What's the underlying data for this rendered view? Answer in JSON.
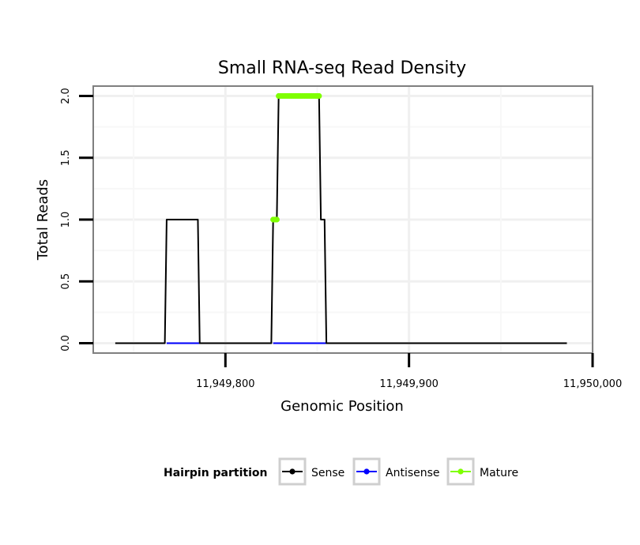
{
  "chart_data": {
    "type": "line",
    "title": "Small RNA-seq Read Density",
    "xlabel": "Genomic Position",
    "ylabel": "Total Reads",
    "xlim": [
      11949728,
      11950000
    ],
    "ylim": [
      -0.08,
      2.08
    ],
    "x_ticks": [
      11949800,
      11949900,
      11950000
    ],
    "x_tick_labels": [
      "11,949,800",
      "11,949,900",
      "11,950,000"
    ],
    "y_ticks": [
      0,
      0.5,
      1,
      1.5,
      2
    ],
    "y_tick_labels": [
      "0.0",
      "0.5",
      "1.0",
      "1.5",
      "2.0"
    ],
    "grid": true,
    "legend": {
      "title": "Hairpin partition",
      "placement": "bottom",
      "entries": [
        {
          "name": "Sense",
          "color": "#000000"
        },
        {
          "name": "Antisense",
          "color": "#0000ff"
        },
        {
          "name": "Mature",
          "color": "#7fff00"
        }
      ]
    },
    "series": [
      {
        "name": "Sense",
        "color": "#000000",
        "style": "line",
        "x": [
          11949740,
          11949767,
          11949768,
          11949785,
          11949786,
          11949825,
          11949826,
          11949828,
          11949829,
          11949851,
          11949852,
          11949854,
          11949855,
          11949986
        ],
        "y": [
          0,
          0,
          1,
          1,
          0,
          0,
          1,
          1,
          2,
          2,
          1,
          1,
          0,
          0
        ]
      },
      {
        "name": "Antisense",
        "color": "#0000ff",
        "style": "line",
        "x": [
          11949768,
          11949786,
          11949826,
          11949855
        ],
        "y": [
          0,
          0,
          0,
          0
        ],
        "segments": [
          [
            0,
            1
          ],
          [
            2,
            3
          ]
        ]
      },
      {
        "name": "Mature",
        "color": "#7fff00",
        "style": "points",
        "x": [
          11949826,
          11949827,
          11949828,
          11949829,
          11949830,
          11949831,
          11949832,
          11949833,
          11949834,
          11949835,
          11949836,
          11949837,
          11949838,
          11949839,
          11949840,
          11949841,
          11949842,
          11949843,
          11949844,
          11949845,
          11949846,
          11949847,
          11949848,
          11949849,
          11949850,
          11949851
        ],
        "y": [
          1,
          1,
          1,
          2,
          2,
          2,
          2,
          2,
          2,
          2,
          2,
          2,
          2,
          2,
          2,
          2,
          2,
          2,
          2,
          2,
          2,
          2,
          2,
          2,
          2,
          2
        ]
      }
    ]
  }
}
